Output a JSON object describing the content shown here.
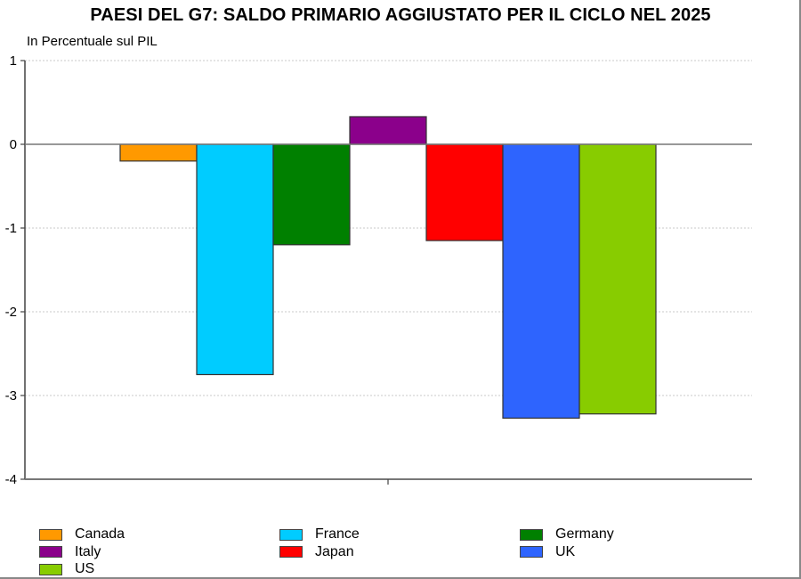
{
  "chart_data": {
    "type": "bar",
    "title": "PAESI DEL G7: SALDO PRIMARIO AGGIUSTATO PER IL CICLO NEL 2025",
    "ylabel": "In Percentuale sul PIL",
    "xlabel": "",
    "ylim": [
      -4,
      1
    ],
    "yticks": [
      1,
      0,
      -1,
      -2,
      -3,
      -4
    ],
    "grid": true,
    "legend_position": "bottom",
    "categories": [
      "Canada",
      "France",
      "Germany",
      "Italy",
      "Japan",
      "UK",
      "US"
    ],
    "values": [
      -0.2,
      -2.75,
      -1.2,
      0.33,
      -1.15,
      -3.27,
      -3.22
    ],
    "colors": [
      "#FF9900",
      "#00CCFF",
      "#008000",
      "#8B008B",
      "#FF0000",
      "#2E64FE",
      "#88CC00"
    ]
  },
  "legend": [
    {
      "label": "Canada",
      "color": "#FF9900"
    },
    {
      "label": "France",
      "color": "#00CCFF"
    },
    {
      "label": "Germany",
      "color": "#008000"
    },
    {
      "label": "Italy",
      "color": "#8B008B"
    },
    {
      "label": "Japan",
      "color": "#FF0000"
    },
    {
      "label": "UK",
      "color": "#2E64FE"
    },
    {
      "label": "US",
      "color": "#88CC00"
    }
  ]
}
